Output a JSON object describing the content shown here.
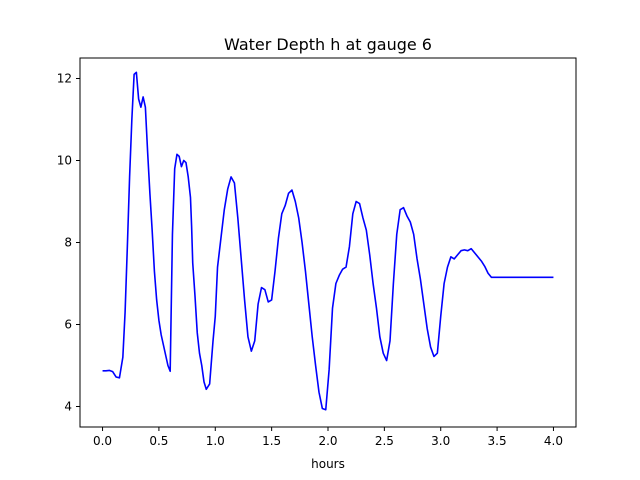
{
  "chart_data": {
    "type": "line",
    "title": "Water Depth h at gauge 6",
    "xlabel": "hours",
    "ylabel": "",
    "xlim": [
      -0.2,
      4.2
    ],
    "ylim": [
      3.5,
      12.5
    ],
    "xticks": [
      0.0,
      0.5,
      1.0,
      1.5,
      2.0,
      2.5,
      3.0,
      3.5,
      4.0
    ],
    "xtick_labels": [
      "0.0",
      "0.5",
      "1.0",
      "1.5",
      "2.0",
      "2.5",
      "3.0",
      "3.5",
      "4.0"
    ],
    "yticks": [
      4,
      6,
      8,
      10,
      12
    ],
    "ytick_labels": [
      "4",
      "6",
      "8",
      "10",
      "12"
    ],
    "grid": false,
    "series": [
      {
        "color": "#0000ff",
        "x": [
          0.0,
          0.03,
          0.06,
          0.09,
          0.12,
          0.15,
          0.18,
          0.2,
          0.22,
          0.24,
          0.26,
          0.28,
          0.3,
          0.32,
          0.34,
          0.36,
          0.38,
          0.4,
          0.42,
          0.44,
          0.46,
          0.48,
          0.5,
          0.52,
          0.54,
          0.56,
          0.58,
          0.6,
          0.62,
          0.64,
          0.66,
          0.68,
          0.7,
          0.72,
          0.74,
          0.76,
          0.78,
          0.79,
          0.8,
          0.82,
          0.84,
          0.86,
          0.88,
          0.9,
          0.92,
          0.95,
          0.98,
          1.0,
          1.02,
          1.05,
          1.08,
          1.11,
          1.14,
          1.17,
          1.2,
          1.23,
          1.26,
          1.29,
          1.32,
          1.35,
          1.38,
          1.41,
          1.44,
          1.47,
          1.5,
          1.53,
          1.56,
          1.59,
          1.62,
          1.65,
          1.68,
          1.71,
          1.74,
          1.77,
          1.8,
          1.83,
          1.86,
          1.89,
          1.92,
          1.95,
          1.98,
          2.01,
          2.04,
          2.07,
          2.1,
          2.13,
          2.16,
          2.19,
          2.22,
          2.25,
          2.28,
          2.31,
          2.34,
          2.37,
          2.4,
          2.43,
          2.46,
          2.49,
          2.52,
          2.55,
          2.58,
          2.61,
          2.64,
          2.67,
          2.7,
          2.73,
          2.76,
          2.79,
          2.82,
          2.85,
          2.88,
          2.91,
          2.94,
          2.97,
          3.0,
          3.03,
          3.06,
          3.09,
          3.12,
          3.15,
          3.18,
          3.21,
          3.24,
          3.27,
          3.3,
          3.33,
          3.36,
          3.39,
          3.42,
          3.45,
          3.48,
          3.51,
          3.54,
          3.57,
          3.6,
          3.63,
          3.66,
          3.69,
          3.72,
          3.75,
          3.78,
          3.81,
          3.84,
          3.87,
          3.9,
          3.93,
          3.96,
          4.0
        ],
        "y": [
          4.87,
          4.87,
          4.88,
          4.85,
          4.72,
          4.7,
          5.2,
          6.3,
          7.9,
          9.6,
          11.0,
          12.1,
          12.15,
          11.5,
          11.3,
          11.55,
          11.3,
          10.2,
          9.2,
          8.3,
          7.3,
          6.6,
          6.1,
          5.75,
          5.5,
          5.25,
          5.0,
          4.86,
          8.2,
          9.8,
          10.15,
          10.1,
          9.85,
          10.0,
          9.95,
          9.6,
          9.1,
          8.4,
          7.5,
          6.7,
          5.8,
          5.3,
          5.0,
          4.6,
          4.42,
          4.55,
          5.6,
          6.2,
          7.4,
          8.1,
          8.8,
          9.3,
          9.6,
          9.45,
          8.6,
          7.6,
          6.6,
          5.7,
          5.35,
          5.6,
          6.5,
          6.9,
          6.85,
          6.55,
          6.6,
          7.3,
          8.1,
          8.7,
          8.9,
          9.2,
          9.28,
          9.0,
          8.6,
          8.0,
          7.3,
          6.5,
          5.7,
          5.0,
          4.35,
          3.95,
          3.92,
          4.9,
          6.4,
          7.0,
          7.2,
          7.35,
          7.4,
          7.9,
          8.7,
          9.0,
          8.95,
          8.6,
          8.3,
          7.7,
          7.0,
          6.4,
          5.7,
          5.3,
          5.12,
          5.6,
          7.0,
          8.2,
          8.8,
          8.85,
          8.65,
          8.5,
          8.2,
          7.6,
          7.1,
          6.5,
          5.9,
          5.45,
          5.22,
          5.3,
          6.2,
          7.0,
          7.4,
          7.65,
          7.6,
          7.7,
          7.8,
          7.82,
          7.8,
          7.85,
          7.75,
          7.65,
          7.55,
          7.42,
          7.25,
          7.15,
          7.15,
          7.15,
          7.15,
          7.15,
          7.15,
          7.15,
          7.15,
          7.15,
          7.15,
          7.15,
          7.15,
          7.15,
          7.15,
          7.15,
          7.15,
          7.15,
          7.15,
          7.15
        ]
      }
    ]
  }
}
